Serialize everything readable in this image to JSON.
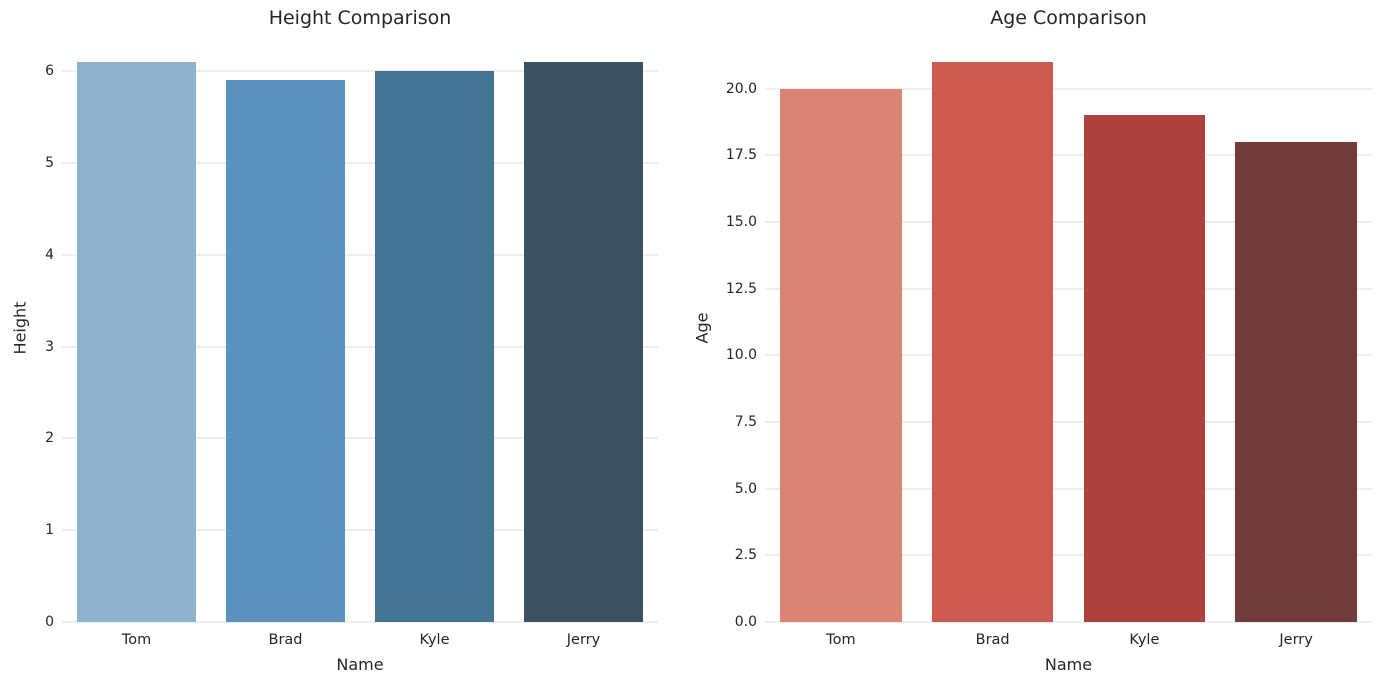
{
  "figure": {
    "background_color": "#ffffff",
    "text_color": "#262626",
    "grid_color": "#dcdcdc"
  },
  "chart_data": [
    {
      "type": "bar",
      "title": "Height Comparison",
      "xlabel": "Name",
      "ylabel": "Height",
      "categories": [
        "Tom",
        "Brad",
        "Kyle",
        "Jerry"
      ],
      "values": [
        6.1,
        5.9,
        6.0,
        6.1
      ],
      "bar_colors": [
        "#8cb2cd",
        "#5b92be",
        "#447395",
        "#3b5162"
      ],
      "yticks": [
        0,
        1,
        2,
        3,
        4,
        5,
        6
      ],
      "ytick_labels": [
        "0",
        "1",
        "2",
        "3",
        "4",
        "5",
        "6"
      ],
      "ylim": [
        0,
        6.405
      ],
      "grid": true,
      "legend": null
    },
    {
      "type": "bar",
      "title": "Age Comparison",
      "xlabel": "Name",
      "ylabel": "Age",
      "categories": [
        "Tom",
        "Brad",
        "Kyle",
        "Jerry"
      ],
      "values": [
        20,
        21,
        19,
        18
      ],
      "bar_colors": [
        "#dd8374",
        "#cc5a50",
        "#ac423c",
        "#703b38"
      ],
      "yticks": [
        0,
        2.5,
        5,
        7.5,
        10,
        12.5,
        15,
        17.5,
        20
      ],
      "ytick_labels": [
        "0.0",
        "2.5",
        "5.0",
        "7.5",
        "10.0",
        "12.5",
        "15.0",
        "17.5",
        "20.0"
      ],
      "ylim": [
        0,
        22.05
      ],
      "grid": true,
      "legend": null
    }
  ]
}
